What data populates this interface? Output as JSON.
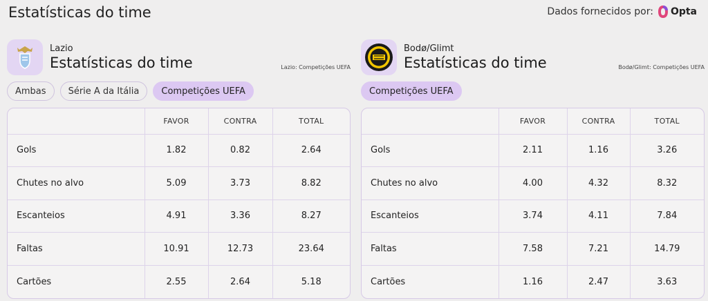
{
  "header": {
    "title": "Estatísticas do time",
    "provider_label": "Dados fornecidos por:",
    "provider_name": "Opta"
  },
  "teams": [
    {
      "name": "Lazio",
      "title": "Estatísticas do time",
      "note": "Lazio: Competições UEFA",
      "filters": [
        {
          "label": "Ambas",
          "active": false
        },
        {
          "label": "Série A da Itália",
          "active": false
        },
        {
          "label": "Competições UEFA",
          "active": true
        }
      ],
      "columns": [
        "",
        "FAVOR",
        "CONTRA",
        "TOTAL"
      ],
      "rows": [
        {
          "label": "Gols",
          "favor": "1.82",
          "contra": "0.82",
          "total": "2.64"
        },
        {
          "label": "Chutes no alvo",
          "favor": "5.09",
          "contra": "3.73",
          "total": "8.82"
        },
        {
          "label": "Escanteios",
          "favor": "4.91",
          "contra": "3.36",
          "total": "8.27"
        },
        {
          "label": "Faltas",
          "favor": "10.91",
          "contra": "12.73",
          "total": "23.64"
        },
        {
          "label": "Cartões",
          "favor": "2.55",
          "contra": "2.64",
          "total": "5.18"
        }
      ]
    },
    {
      "name": "Bodø/Glimt",
      "title": "Estatísticas do time",
      "note": "Bodø/Glimt: Competições UEFA",
      "filters": [
        {
          "label": "Competições UEFA",
          "active": true
        }
      ],
      "columns": [
        "",
        "FAVOR",
        "CONTRA",
        "TOTAL"
      ],
      "rows": [
        {
          "label": "Gols",
          "favor": "2.11",
          "contra": "1.16",
          "total": "3.26"
        },
        {
          "label": "Chutes no alvo",
          "favor": "4.00",
          "contra": "4.32",
          "total": "8.32"
        },
        {
          "label": "Escanteios",
          "favor": "3.74",
          "contra": "4.11",
          "total": "7.84"
        },
        {
          "label": "Faltas",
          "favor": "7.58",
          "contra": "7.21",
          "total": "14.79"
        },
        {
          "label": "Cartões",
          "favor": "1.16",
          "contra": "2.47",
          "total": "3.63"
        }
      ]
    }
  ],
  "colors": {
    "accent": "#dcc8f2",
    "border": "#d6c9e6",
    "background": "#efeeee"
  },
  "icons": {
    "team0": "lazio-crest-icon",
    "team1": "bodo-glimt-crest-icon",
    "provider": "opta-logo-icon"
  }
}
